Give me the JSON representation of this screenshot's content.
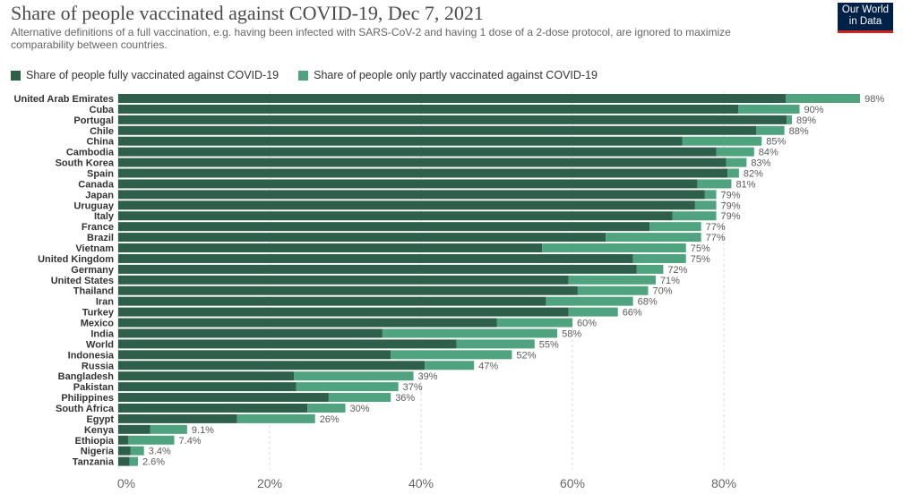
{
  "header": {
    "title": "Share of people vaccinated against COVID-19, Dec 7, 2021",
    "subtitle": "Alternative definitions of a full vaccination, e.g. having been infected with SARS-CoV-2 and having 1 dose of a 2-dose protocol, are ignored to maximize comparability between countries.",
    "logo_line1": "Our World",
    "logo_line2": "in Data"
  },
  "colors": {
    "full": "#2e5f4b",
    "partial": "#4fa37f",
    "grid": "#d9d9d9",
    "label": "#333333",
    "value": "#5b5b5b"
  },
  "chart_data": {
    "type": "bar",
    "orientation": "horizontal",
    "stacked": true,
    "title": "Share of people vaccinated against COVID-19, Dec 7, 2021",
    "categories": [
      "United Arab Emirates",
      "Cuba",
      "Portugal",
      "Chile",
      "China",
      "Cambodia",
      "South Korea",
      "Spain",
      "Canada",
      "Japan",
      "Uruguay",
      "Italy",
      "France",
      "Brazil",
      "Vietnam",
      "United Kingdom",
      "Germany",
      "United States",
      "Thailand",
      "Iran",
      "Turkey",
      "Mexico",
      "India",
      "World",
      "Indonesia",
      "Russia",
      "Bangladesh",
      "Pakistan",
      "Philippines",
      "South Africa",
      "Egypt",
      "Kenya",
      "Ethiopia",
      "Nigeria",
      "Tanzania"
    ],
    "series": [
      {
        "name": "Share of people fully vaccinated against COVID-19",
        "values": [
          88.2,
          81.9,
          88.3,
          84.3,
          74.5,
          79.0,
          80.3,
          80.5,
          76.5,
          77.5,
          76.2,
          73.2,
          70.2,
          64.4,
          56.0,
          68.0,
          68.5,
          59.5,
          60.7,
          56.5,
          59.5,
          50.0,
          34.9,
          44.7,
          36.0,
          40.5,
          23.2,
          23.5,
          27.8,
          25.0,
          15.7,
          4.2,
          1.3,
          1.6,
          1.5
        ]
      },
      {
        "name": "Share of people only partly vaccinated against COVID-19",
        "values": [
          9.8,
          8.1,
          0.7,
          3.7,
          10.5,
          5.0,
          2.7,
          1.5,
          4.5,
          1.5,
          2.8,
          5.8,
          6.8,
          12.6,
          19.0,
          7.0,
          3.5,
          11.5,
          9.3,
          11.5,
          6.5,
          10.0,
          23.1,
          10.3,
          16.0,
          6.5,
          15.8,
          13.5,
          8.2,
          5.0,
          10.3,
          4.9,
          6.1,
          1.8,
          1.1
        ]
      }
    ],
    "total_labels": [
      "98%",
      "90%",
      "89%",
      "88%",
      "85%",
      "84%",
      "83%",
      "82%",
      "81%",
      "79%",
      "79%",
      "79%",
      "77%",
      "77%",
      "75%",
      "75%",
      "72%",
      "71%",
      "70%",
      "68%",
      "66%",
      "60%",
      "58%",
      "55%",
      "52%",
      "47%",
      "39%",
      "37%",
      "36%",
      "30%",
      "26%",
      "9.1%",
      "7.4%",
      "3.4%",
      "2.6%"
    ],
    "xlim": [
      0,
      100
    ],
    "x_ticks": [
      0,
      20,
      40,
      60,
      80
    ],
    "x_tick_labels": [
      "0%",
      "20%",
      "40%",
      "60%",
      "80%"
    ],
    "grid": true,
    "legend_position": "top-left"
  }
}
